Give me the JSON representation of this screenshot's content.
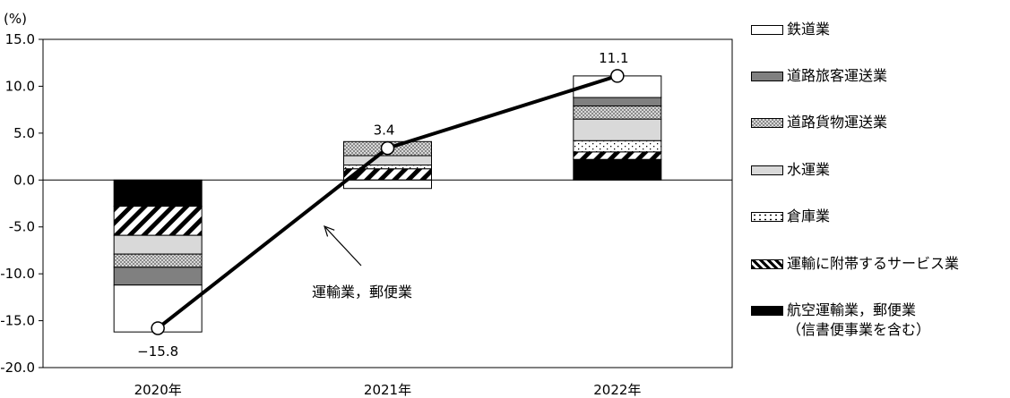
{
  "chart_data": {
    "type": "bar",
    "stacked": true,
    "unit_label": "(%)",
    "categories": [
      "2020年",
      "2021年",
      "2022年"
    ],
    "ylim": [
      -20,
      15
    ],
    "yticks": [
      "15.0",
      "10.0",
      "5.0",
      "0.0",
      "-5.0",
      "-10.0",
      "-15.0",
      "-20.0"
    ],
    "grid": false,
    "legend_position": "right",
    "series": [
      {
        "name": "航空運輸業，郵便業\n（信書便事業を含む）",
        "pattern": "solid-black",
        "values": [
          -2.8,
          0.0,
          2.2
        ]
      },
      {
        "name": "運輸に附帯するサービス業",
        "pattern": "diagonal-hatch",
        "values": [
          -3.1,
          1.2,
          0.8
        ]
      },
      {
        "name": "倉庫業",
        "pattern": "dots",
        "values": [
          0.0,
          0.4,
          1.2
        ]
      },
      {
        "name": "水運業",
        "pattern": "light-gray",
        "values": [
          -2.0,
          1.0,
          2.3
        ]
      },
      {
        "name": "道路貨物運送業",
        "pattern": "crosshatch",
        "values": [
          -1.4,
          1.5,
          1.4
        ]
      },
      {
        "name": "道路旅客運送業",
        "pattern": "dark-gray",
        "values": [
          -1.9,
          0.0,
          0.9
        ]
      },
      {
        "name": "鉄道業",
        "pattern": "white",
        "values": [
          -5.0,
          -0.9,
          2.3
        ]
      }
    ],
    "line": {
      "name": "運輸業，郵便業",
      "values": [
        -15.8,
        3.4,
        11.1
      ],
      "value_labels": [
        "−15.8",
        "3.4",
        "11.1"
      ]
    },
    "annotation": "運輸業，郵便業"
  },
  "legend": [
    {
      "label": "鉄道業",
      "pattern": "white"
    },
    {
      "label": "道路旅客運送業",
      "pattern": "dark-gray"
    },
    {
      "label": "道路貨物運送業",
      "pattern": "crosshatch"
    },
    {
      "label": "水運業",
      "pattern": "light-gray"
    },
    {
      "label": "倉庫業",
      "pattern": "dots"
    },
    {
      "label": "運輸に附帯するサービス業",
      "pattern": "diagonal-hatch"
    },
    {
      "label": "航空運輸業，郵便業\n（信書便事業を含む）",
      "pattern": "solid-black"
    }
  ]
}
